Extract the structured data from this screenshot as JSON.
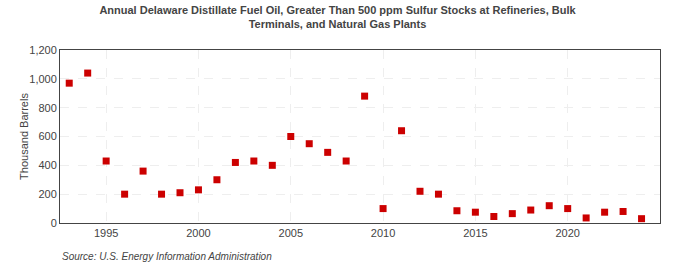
{
  "chart_data": {
    "type": "scatter",
    "title": "Annual Delaware Distillate Fuel Oil, Greater Than 500 ppm Sulfur Stocks at Refineries, Bulk\nTerminals, and Natural Gas Plants",
    "ylabel": "Thousand Barrels",
    "annotations": [
      "Source: U.S. Energy Information Administration"
    ],
    "x": [
      1993,
      1994,
      1995,
      1996,
      1997,
      1998,
      1999,
      2000,
      2001,
      2002,
      2003,
      2004,
      2005,
      2006,
      2007,
      2008,
      2009,
      2010,
      2011,
      2012,
      2013,
      2014,
      2015,
      2016,
      2017,
      2018,
      2019,
      2020,
      2021,
      2022,
      2023,
      2024
    ],
    "values": [
      970,
      1040,
      430,
      200,
      360,
      200,
      210,
      230,
      300,
      420,
      430,
      400,
      600,
      550,
      490,
      430,
      880,
      100,
      640,
      220,
      200,
      85,
      75,
      45,
      65,
      90,
      120,
      100,
      35,
      75,
      80,
      30
    ],
    "color": "#cc0000",
    "marker": "square",
    "xlim": [
      1992.5,
      2025
    ],
    "xticks": [
      1995,
      2000,
      2005,
      2010,
      2015,
      2020
    ],
    "ylim": [
      0,
      1200
    ],
    "yticks": [
      0,
      200,
      400,
      600,
      800,
      {
        "value": 1000,
        "label": "1,000"
      },
      {
        "value": 1200,
        "label": "1,200"
      }
    ],
    "grid": true
  }
}
